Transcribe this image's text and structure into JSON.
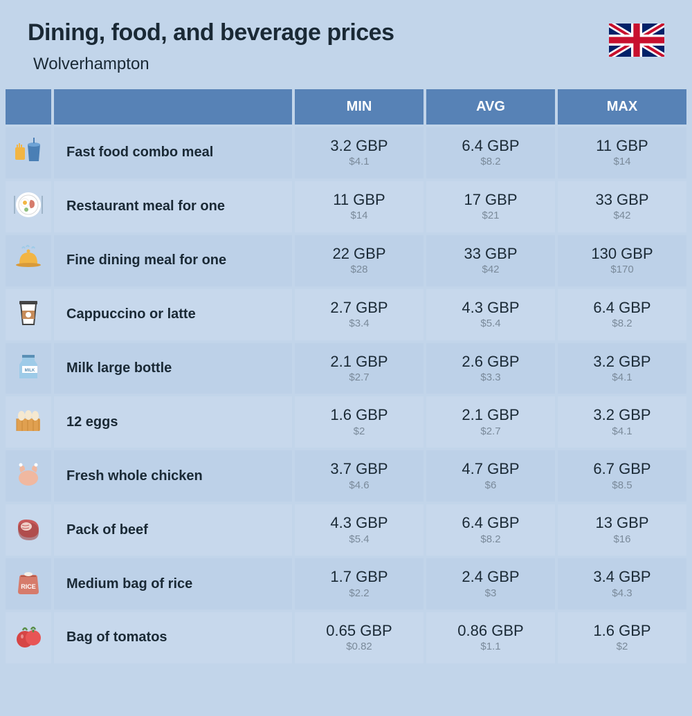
{
  "title": "Dining, food, and beverage prices",
  "subtitle": "Wolverhampton",
  "columns": {
    "min": "MIN",
    "avg": "AVG",
    "max": "MAX"
  },
  "colors": {
    "page_bg": "#c2d5ea",
    "header_bg": "#5782b6",
    "header_text": "#ffffff",
    "row_even": "#bdd1e8",
    "row_odd": "#c7d8ec",
    "text_dark": "#1a2935",
    "text_muted": "#7a8a9a"
  },
  "rows": [
    {
      "icon": "fastfood",
      "name": "Fast food combo meal",
      "min_gbp": "3.2 GBP",
      "min_usd": "$4.1",
      "avg_gbp": "6.4 GBP",
      "avg_usd": "$8.2",
      "max_gbp": "11 GBP",
      "max_usd": "$14"
    },
    {
      "icon": "breakfast",
      "name": "Restaurant meal for one",
      "min_gbp": "11 GBP",
      "min_usd": "$14",
      "avg_gbp": "17 GBP",
      "avg_usd": "$21",
      "max_gbp": "33 GBP",
      "max_usd": "$42"
    },
    {
      "icon": "cloche",
      "name": "Fine dining meal for one",
      "min_gbp": "22 GBP",
      "min_usd": "$28",
      "avg_gbp": "33 GBP",
      "avg_usd": "$42",
      "max_gbp": "130 GBP",
      "max_usd": "$170"
    },
    {
      "icon": "coffee",
      "name": "Cappuccino or latte",
      "min_gbp": "2.7 GBP",
      "min_usd": "$3.4",
      "avg_gbp": "4.3 GBP",
      "avg_usd": "$5.4",
      "max_gbp": "6.4 GBP",
      "max_usd": "$8.2"
    },
    {
      "icon": "milk",
      "name": "Milk large bottle",
      "min_gbp": "2.1 GBP",
      "min_usd": "$2.7",
      "avg_gbp": "2.6 GBP",
      "avg_usd": "$3.3",
      "max_gbp": "3.2 GBP",
      "max_usd": "$4.1"
    },
    {
      "icon": "eggs",
      "name": "12 eggs",
      "min_gbp": "1.6 GBP",
      "min_usd": "$2",
      "avg_gbp": "2.1 GBP",
      "avg_usd": "$2.7",
      "max_gbp": "3.2 GBP",
      "max_usd": "$4.1"
    },
    {
      "icon": "chicken",
      "name": "Fresh whole chicken",
      "min_gbp": "3.7 GBP",
      "min_usd": "$4.6",
      "avg_gbp": "4.7 GBP",
      "avg_usd": "$6",
      "max_gbp": "6.7 GBP",
      "max_usd": "$8.5"
    },
    {
      "icon": "beef",
      "name": "Pack of beef",
      "min_gbp": "4.3 GBP",
      "min_usd": "$5.4",
      "avg_gbp": "6.4 GBP",
      "avg_usd": "$8.2",
      "max_gbp": "13 GBP",
      "max_usd": "$16"
    },
    {
      "icon": "rice",
      "name": "Medium bag of rice",
      "min_gbp": "1.7 GBP",
      "min_usd": "$2.2",
      "avg_gbp": "2.4 GBP",
      "avg_usd": "$3",
      "max_gbp": "3.4 GBP",
      "max_usd": "$4.3"
    },
    {
      "icon": "tomato",
      "name": "Bag of tomatos",
      "min_gbp": "0.65 GBP",
      "min_usd": "$0.82",
      "avg_gbp": "0.86 GBP",
      "avg_usd": "$1.1",
      "max_gbp": "1.6 GBP",
      "max_usd": "$2"
    }
  ]
}
